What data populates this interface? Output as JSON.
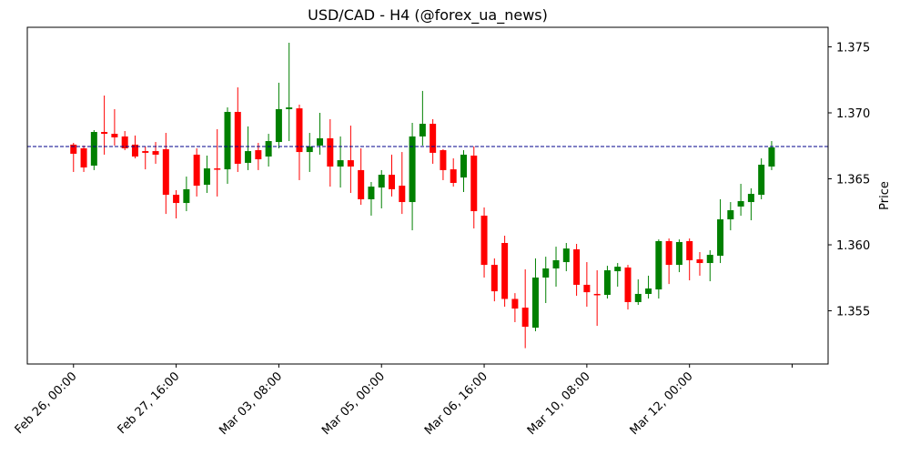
{
  "chart_data": {
    "type": "candlestick",
    "title": "USD/CAD - H4 (@forex_ua_news)",
    "xlabel": "",
    "ylabel": "Price",
    "ylim": [
      1.35097,
      1.37648
    ],
    "xlim": [
      -4.5,
      73.5
    ],
    "y_ticks": [
      1.355,
      1.36,
      1.365,
      1.37,
      1.375
    ],
    "y_tick_labels": [
      "1.355",
      "1.360",
      "1.365",
      "1.370",
      "1.375"
    ],
    "x_ticks": [
      0,
      10,
      20,
      30,
      40,
      50,
      60,
      70
    ],
    "x_tick_labels": [
      "Feb 26, 00:00",
      "Feb 27, 16:00",
      "Mar 03, 08:00",
      "Mar 05, 00:00",
      "Mar 06, 16:00",
      "Mar 10, 08:00",
      "Mar 12, 00:00",
      ""
    ],
    "reference_line": 1.36745,
    "colors": {
      "up": "#008000",
      "down": "#ff0000",
      "reference": "#00008b"
    },
    "ohlc_fields": [
      "open",
      "high",
      "low",
      "close"
    ],
    "candles": [
      [
        1.36759,
        1.36772,
        1.36552,
        1.3669
      ],
      [
        1.36731,
        1.36752,
        1.36552,
        1.36586
      ],
      [
        1.366,
        1.36869,
        1.36566,
        1.36855
      ],
      [
        1.36855,
        1.37131,
        1.36683,
        1.36841
      ],
      [
        1.36841,
        1.37028,
        1.36752,
        1.36814
      ],
      [
        1.36821,
        1.36862,
        1.36717,
        1.36731
      ],
      [
        1.36759,
        1.36828,
        1.36655,
        1.36669
      ],
      [
        1.3671,
        1.36745,
        1.36572,
        1.36697
      ],
      [
        1.3671,
        1.36779,
        1.36614,
        1.36683
      ],
      [
        1.36724,
        1.36848,
        1.36234,
        1.36379
      ],
      [
        1.36379,
        1.36414,
        1.362,
        1.36317
      ],
      [
        1.36317,
        1.36517,
        1.36255,
        1.36421
      ],
      [
        1.36683,
        1.36731,
        1.36366,
        1.36448
      ],
      [
        1.36455,
        1.36676,
        1.36393,
        1.36579
      ],
      [
        1.36579,
        1.36876,
        1.36366,
        1.36572
      ],
      [
        1.36572,
        1.37041,
        1.36462,
        1.37007
      ],
      [
        1.37007,
        1.37193,
        1.36552,
        1.36614
      ],
      [
        1.36621,
        1.36897,
        1.36566,
        1.3671
      ],
      [
        1.36717,
        1.36772,
        1.36566,
        1.36648
      ],
      [
        1.36669,
        1.36841,
        1.36593,
        1.36786
      ],
      [
        1.36779,
        1.37228,
        1.36731,
        1.37028
      ],
      [
        1.37028,
        1.37531,
        1.36786,
        1.37041
      ],
      [
        1.37034,
        1.37062,
        1.3649,
        1.36703
      ],
      [
        1.36703,
        1.36848,
        1.36552,
        1.36745
      ],
      [
        1.36752,
        1.37,
        1.36683,
        1.36807
      ],
      [
        1.36807,
        1.36952,
        1.36441,
        1.36593
      ],
      [
        1.36593,
        1.36821,
        1.36434,
        1.36641
      ],
      [
        1.36641,
        1.36903,
        1.36393,
        1.36593
      ],
      [
        1.36566,
        1.36731,
        1.36303,
        1.36345
      ],
      [
        1.36345,
        1.36476,
        1.36221,
        1.36441
      ],
      [
        1.36434,
        1.36566,
        1.36276,
        1.36531
      ],
      [
        1.36531,
        1.36683,
        1.36366,
        1.36421
      ],
      [
        1.36448,
        1.36703,
        1.36234,
        1.36324
      ],
      [
        1.36324,
        1.36924,
        1.3611,
        1.36821
      ],
      [
        1.36821,
        1.37166,
        1.36752,
        1.36917
      ],
      [
        1.36917,
        1.36952,
        1.36614,
        1.36697
      ],
      [
        1.36717,
        1.36724,
        1.3649,
        1.36566
      ],
      [
        1.36572,
        1.36655,
        1.36441,
        1.36469
      ],
      [
        1.3651,
        1.36717,
        1.364,
        1.36683
      ],
      [
        1.36676,
        1.36745,
        1.36124,
        1.36255
      ],
      [
        1.36221,
        1.36283,
        1.35752,
        1.35848
      ],
      [
        1.35848,
        1.35897,
        1.35572,
        1.35648
      ],
      [
        1.36014,
        1.36069,
        1.35531,
        1.3559
      ],
      [
        1.3559,
        1.35634,
        1.35414,
        1.35517
      ],
      [
        1.35524,
        1.35814,
        1.35217,
        1.35379
      ],
      [
        1.35372,
        1.35897,
        1.35345,
        1.35752
      ],
      [
        1.35752,
        1.3591,
        1.35559,
        1.35821
      ],
      [
        1.35821,
        1.35986,
        1.35683,
        1.35883
      ],
      [
        1.35869,
        1.36014,
        1.358,
        1.35972
      ],
      [
        1.35966,
        1.36007,
        1.35614,
        1.35697
      ],
      [
        1.35697,
        1.35869,
        1.35531,
        1.35641
      ],
      [
        1.35628,
        1.35807,
        1.35386,
        1.35621
      ],
      [
        1.35621,
        1.35841,
        1.35593,
        1.35807
      ],
      [
        1.358,
        1.35862,
        1.35683,
        1.35834
      ],
      [
        1.35828,
        1.35848,
        1.3551,
        1.35566
      ],
      [
        1.35566,
        1.35738,
        1.35545,
        1.35628
      ],
      [
        1.35628,
        1.35766,
        1.35593,
        1.35669
      ],
      [
        1.35662,
        1.36041,
        1.35593,
        1.36028
      ],
      [
        1.36028,
        1.36048,
        1.35703,
        1.35848
      ],
      [
        1.35848,
        1.36041,
        1.35793,
        1.36021
      ],
      [
        1.36028,
        1.36048,
        1.35731,
        1.35883
      ],
      [
        1.3589,
        1.35945,
        1.35766,
        1.35862
      ],
      [
        1.35862,
        1.35959,
        1.35724,
        1.35924
      ],
      [
        1.35917,
        1.36345,
        1.35862,
        1.36193
      ],
      [
        1.36193,
        1.36324,
        1.3611,
        1.36262
      ],
      [
        1.3629,
        1.36462,
        1.3622,
        1.36331
      ],
      [
        1.36324,
        1.36428,
        1.36186,
        1.36386
      ],
      [
        1.36379,
        1.36655,
        1.36345,
        1.36607
      ],
      [
        1.36593,
        1.36786,
        1.36566,
        1.36738
      ]
    ]
  }
}
